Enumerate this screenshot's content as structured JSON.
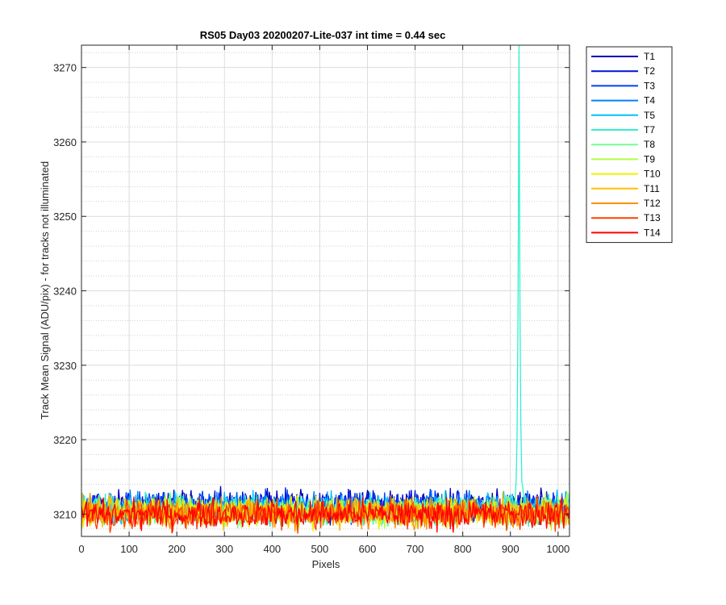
{
  "chart_data": {
    "type": "line",
    "title": "RS05 Day03 20200207-Lite-037 int time = 0.44 sec",
    "xlabel": "Pixels",
    "ylabel": "Track Mean Signal (ADU/pix) - for tracks not illuminated",
    "xlim": [
      0,
      1024
    ],
    "ylim": [
      3207,
      3273
    ],
    "xticks": [
      0,
      100,
      200,
      300,
      400,
      500,
      600,
      700,
      800,
      900,
      1000
    ],
    "yticks": [
      3210,
      3220,
      3230,
      3240,
      3250,
      3260,
      3270
    ],
    "grid": true,
    "minor_grid": true,
    "legend_position": "outside-top-right",
    "series": [
      {
        "name": "T1",
        "color": "#0000b3",
        "baseline": 3211.2,
        "noise": 1.2
      },
      {
        "name": "T2",
        "color": "#0010d9",
        "baseline": 3211.1,
        "noise": 1.2
      },
      {
        "name": "T3",
        "color": "#0040ff",
        "baseline": 3211.0,
        "noise": 1.2
      },
      {
        "name": "T4",
        "color": "#0080ff",
        "baseline": 3210.9,
        "noise": 1.2
      },
      {
        "name": "T5",
        "color": "#00c0ff",
        "baseline": 3210.8,
        "noise": 1.2
      },
      {
        "name": "T7",
        "color": "#30f0d0",
        "baseline": 3210.6,
        "noise": 1.2,
        "spike": {
          "x": 918,
          "peak": 3273
        }
      },
      {
        "name": "T8",
        "color": "#70ff90",
        "baseline": 3210.4,
        "noise": 1.3
      },
      {
        "name": "T9",
        "color": "#b0ff40",
        "baseline": 3210.3,
        "noise": 1.2
      },
      {
        "name": "T10",
        "color": "#f0f000",
        "baseline": 3210.3,
        "noise": 1.2
      },
      {
        "name": "T11",
        "color": "#ffc000",
        "baseline": 3210.2,
        "noise": 1.2
      },
      {
        "name": "T12",
        "color": "#ff9000",
        "baseline": 3210.1,
        "noise": 1.2
      },
      {
        "name": "T13",
        "color": "#ff4000",
        "baseline": 3210.0,
        "noise": 1.2
      },
      {
        "name": "T14",
        "color": "#ff0000",
        "baseline": 3210.0,
        "noise": 1.2
      }
    ]
  }
}
